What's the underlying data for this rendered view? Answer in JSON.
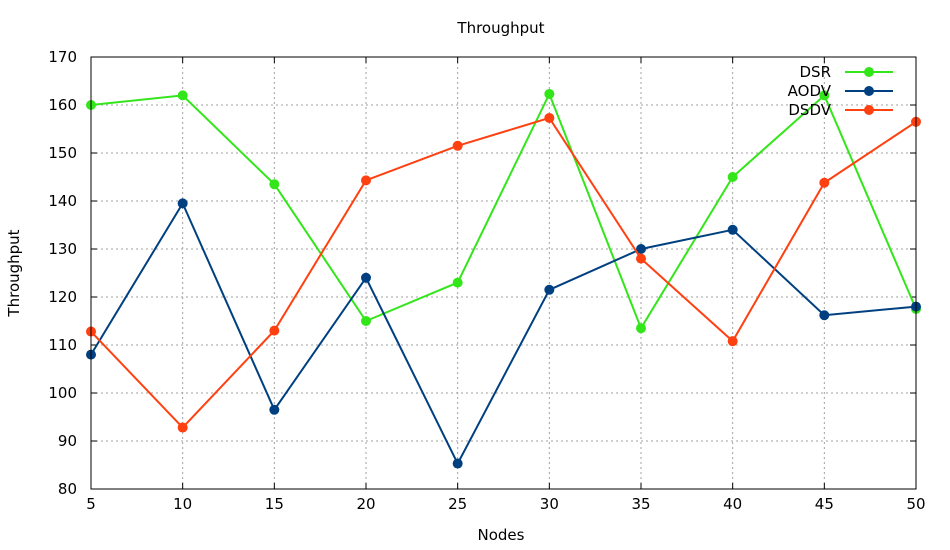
{
  "chart_data": {
    "type": "line",
    "title": "Throughput",
    "xlabel": "Nodes",
    "ylabel": "Throughput",
    "x": [
      5,
      10,
      15,
      20,
      25,
      30,
      35,
      40,
      45,
      50
    ],
    "xlim": [
      5,
      50
    ],
    "ylim": [
      80,
      170
    ],
    "yticks": [
      80,
      90,
      100,
      110,
      120,
      130,
      140,
      150,
      160,
      170
    ],
    "grid": true,
    "legend_position": "top-right",
    "series": [
      {
        "name": "DSR",
        "color": "#33e61a",
        "values": [
          160,
          162,
          143.5,
          115,
          123,
          162.3,
          113.5,
          145,
          162,
          117.5
        ]
      },
      {
        "name": "AODV",
        "color": "#004080",
        "values": [
          108,
          139.5,
          96.5,
          124,
          85.3,
          121.5,
          130,
          134,
          116.2,
          118
        ]
      },
      {
        "name": "DSDV",
        "color": "#ff4010",
        "values": [
          112.8,
          92.8,
          113,
          144.3,
          151.5,
          157.3,
          128,
          110.8,
          143.8,
          156.5
        ]
      }
    ]
  }
}
